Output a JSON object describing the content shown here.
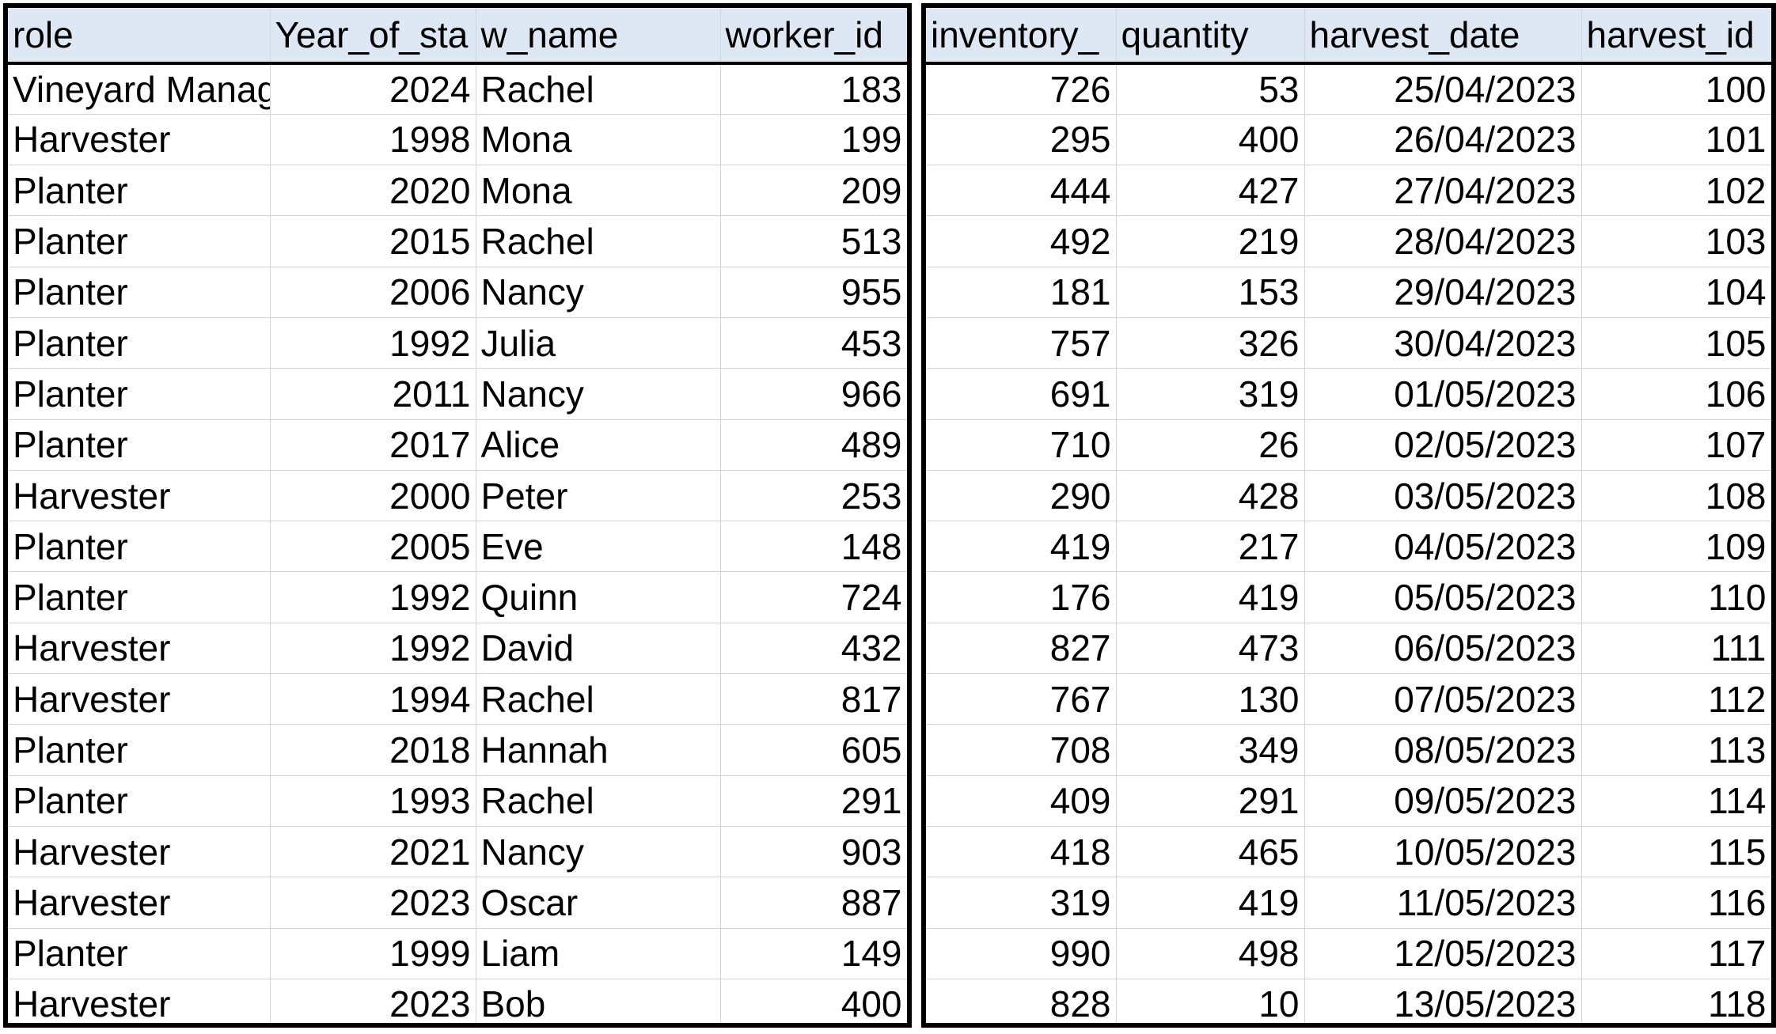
{
  "workers_table": {
    "headers": [
      "role",
      "Year_of_sta",
      "w_name",
      "worker_id"
    ],
    "rows": [
      [
        "Vineyard Manager",
        "2024",
        "Rachel",
        "183"
      ],
      [
        "Harvester",
        "1998",
        "Mona",
        "199"
      ],
      [
        "Planter",
        "2020",
        "Mona",
        "209"
      ],
      [
        "Planter",
        "2015",
        "Rachel",
        "513"
      ],
      [
        "Planter",
        "2006",
        "Nancy",
        "955"
      ],
      [
        "Planter",
        "1992",
        "Julia",
        "453"
      ],
      [
        "Planter",
        "2011",
        "Nancy",
        "966"
      ],
      [
        "Planter",
        "2017",
        "Alice",
        "489"
      ],
      [
        "Harvester",
        "2000",
        "Peter",
        "253"
      ],
      [
        "Planter",
        "2005",
        "Eve",
        "148"
      ],
      [
        "Planter",
        "1992",
        "Quinn",
        "724"
      ],
      [
        "Harvester",
        "1992",
        "David",
        "432"
      ],
      [
        "Harvester",
        "1994",
        "Rachel",
        "817"
      ],
      [
        "Planter",
        "2018",
        "Hannah",
        "605"
      ],
      [
        "Planter",
        "1993",
        "Rachel",
        "291"
      ],
      [
        "Harvester",
        "2021",
        "Nancy",
        "903"
      ],
      [
        "Harvester",
        "2023",
        "Oscar",
        "887"
      ],
      [
        "Planter",
        "1999",
        "Liam",
        "149"
      ],
      [
        "Harvester",
        "2023",
        "Bob",
        "400"
      ]
    ]
  },
  "harvests_table": {
    "headers": [
      "inventory_",
      "quantity",
      "harvest_date",
      "harvest_id"
    ],
    "rows": [
      [
        "726",
        "53",
        "25/04/2023",
        "100"
      ],
      [
        "295",
        "400",
        "26/04/2023",
        "101"
      ],
      [
        "444",
        "427",
        "27/04/2023",
        "102"
      ],
      [
        "492",
        "219",
        "28/04/2023",
        "103"
      ],
      [
        "181",
        "153",
        "29/04/2023",
        "104"
      ],
      [
        "757",
        "326",
        "30/04/2023",
        "105"
      ],
      [
        "691",
        "319",
        "01/05/2023",
        "106"
      ],
      [
        "710",
        "26",
        "02/05/2023",
        "107"
      ],
      [
        "290",
        "428",
        "03/05/2023",
        "108"
      ],
      [
        "419",
        "217",
        "04/05/2023",
        "109"
      ],
      [
        "176",
        "419",
        "05/05/2023",
        "110"
      ],
      [
        "827",
        "473",
        "06/05/2023",
        "111"
      ],
      [
        "767",
        "130",
        "07/05/2023",
        "112"
      ],
      [
        "708",
        "349",
        "08/05/2023",
        "113"
      ],
      [
        "409",
        "291",
        "09/05/2023",
        "114"
      ],
      [
        "418",
        "465",
        "10/05/2023",
        "115"
      ],
      [
        "319",
        "419",
        "11/05/2023",
        "116"
      ],
      [
        "990",
        "498",
        "12/05/2023",
        "117"
      ],
      [
        "828",
        "10",
        "13/05/2023",
        "118"
      ]
    ]
  },
  "colors": {
    "header_fill": "#dde8f4",
    "gridline": "#d4d4d4",
    "border": "#000000"
  }
}
